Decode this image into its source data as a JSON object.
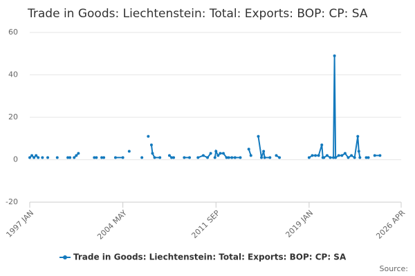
{
  "chart_data": {
    "type": "line",
    "title": "Trade in Goods: Liechtenstein: Total: Exports: BOP: CP: SA",
    "source": "Source:",
    "x": [
      "1997 JAN",
      "1997 MAR",
      "1997 MAY",
      "1997 JUL",
      "1997 SEP",
      "1997 OCT",
      "1998 JAN",
      "1998 MAR",
      "1998 JUN",
      "1998 AUG",
      "1999 MAR",
      "1999 JUN",
      "2000 JAN",
      "2000 MAR",
      "2000 MAY",
      "2000 JUL",
      "2000 SEP",
      "2000 NOV",
      "2000 DEC",
      "2002 FEB",
      "2002 APR",
      "2002 JUN",
      "2002 SEP",
      "2002 NOV",
      "2003 AUG",
      "2003 OCT",
      "2004 MAY",
      "2004 JUL",
      "2004 NOV",
      "2005 JAN",
      "2005 NOV",
      "2006 JAN",
      "2006 MAY",
      "2006 JUL",
      "2006 AUG",
      "2006 SEP",
      "2006 NOV",
      "2007 APR",
      "2007 JUN",
      "2008 JAN",
      "2008 MAR",
      "2008 MAY",
      "2008 AUG",
      "2009 MAR",
      "2009 AUG",
      "2009 OCT",
      "2010 APR",
      "2010 SEP",
      "2011 JAN",
      "2011 APR",
      "2011 JUN",
      "2011 AUG",
      "2011 SEP",
      "2011 NOV",
      "2012 JAN",
      "2012 APR",
      "2012 JUL",
      "2012 SEP",
      "2012 DEC",
      "2013 MAR",
      "2013 AUG",
      "2013 DEC",
      "2014 APR",
      "2014 JUN",
      "2014 SEP",
      "2015 JAN",
      "2015 APR",
      "2015 JUN",
      "2015 JUL",
      "2015 DEC",
      "2016 MAR",
      "2016 JUN",
      "2016 SEP",
      "2018 DEC",
      "2019 JAN",
      "2019 APR",
      "2019 JUL",
      "2019 OCT",
      "2020 JAN",
      "2020 FEB",
      "2020 MAR",
      "2020 JUN",
      "2020 SEP",
      "2020 DEC",
      "2021 JAN",
      "2021 FEB",
      "2021 MAY",
      "2021 AUG",
      "2021 NOV",
      "2022 FEB",
      "2022 MAY",
      "2022 AUG",
      "2022 NOV",
      "2022 DEC",
      "2023 JAN",
      "2023 MAR",
      "2023 JUL",
      "2023 SEP",
      "2023 OCT",
      "2024 MAR",
      "2024 AUG"
    ],
    "series": [
      {
        "name": "Trade in Goods: Liechtenstein: Total: Exports: BOP: CP: SA",
        "color": "#1379bd",
        "values": [
          1,
          2,
          1,
          2,
          1,
          null,
          1,
          null,
          1,
          null,
          1,
          null,
          1,
          1,
          null,
          1,
          2,
          3,
          null,
          1,
          1,
          null,
          1,
          1,
          null,
          1,
          1,
          null,
          4,
          null,
          1,
          null,
          11,
          null,
          7,
          3,
          1,
          1,
          null,
          2,
          1,
          1,
          null,
          1,
          1,
          null,
          1,
          2,
          1,
          3,
          null,
          1,
          4,
          2,
          3,
          3,
          1,
          1,
          1,
          1,
          1,
          null,
          5,
          2,
          null,
          11,
          1,
          4,
          1,
          1,
          null,
          2,
          1,
          null,
          1,
          2,
          2,
          2,
          7,
          1,
          1,
          2,
          1,
          1,
          49,
          1,
          2,
          2,
          3,
          1,
          2,
          1,
          11,
          4,
          1,
          null,
          1,
          1,
          null,
          2,
          2
        ]
      }
    ],
    "xlim": [
      "1997 JAN",
      "2026 APR"
    ],
    "xticks": [
      "1997 JAN",
      "2004 MAY",
      "2011 SEP",
      "2019 JAN",
      "2026 APR"
    ],
    "ylim": [
      -20,
      60
    ],
    "yticks": [
      -20,
      0,
      20,
      40,
      60
    ],
    "grid": true
  }
}
